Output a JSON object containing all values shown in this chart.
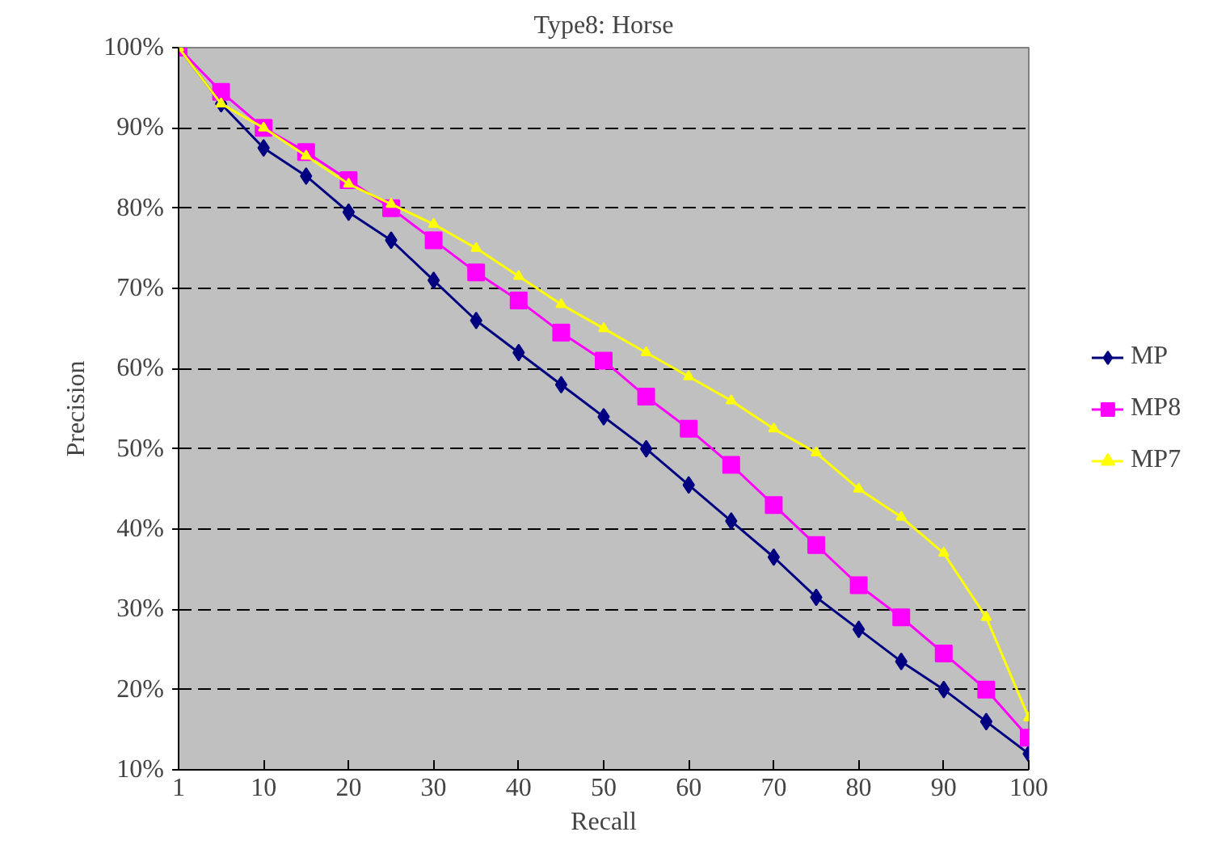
{
  "chart_data": {
    "type": "line",
    "title": "Type8: Horse",
    "xlabel": "Recall",
    "ylabel": "Precision",
    "categories": [
      "1",
      null,
      "10",
      null,
      "20",
      null,
      "30",
      null,
      "40",
      null,
      "50",
      null,
      "60",
      null,
      "70",
      null,
      "80",
      null,
      "90",
      null,
      "100"
    ],
    "ylim": [
      10,
      100
    ],
    "yticks": [
      {
        "value": 10,
        "label": "10%"
      },
      {
        "value": 20,
        "label": "20%"
      },
      {
        "value": 30,
        "label": "30%"
      },
      {
        "value": 40,
        "label": "40%"
      },
      {
        "value": 50,
        "label": "50%"
      },
      {
        "value": 60,
        "label": "60%"
      },
      {
        "value": 70,
        "label": "70%"
      },
      {
        "value": 80,
        "label": "80%"
      },
      {
        "value": 90,
        "label": "90%"
      },
      {
        "value": 100,
        "label": "100%"
      }
    ],
    "grid": "y",
    "legend": "right",
    "series": [
      {
        "name": "MP",
        "color": "#000080",
        "marker": "diamond",
        "values": [
          100,
          93,
          87.5,
          84,
          79.5,
          76,
          71,
          66,
          62,
          58,
          54,
          50,
          45.5,
          41,
          36.5,
          31.5,
          27.5,
          23.5,
          20,
          16,
          12
        ]
      },
      {
        "name": "MP8",
        "color": "#ff00ff",
        "marker": "square",
        "values": [
          100,
          94.5,
          90,
          87,
          83.5,
          80,
          76,
          72,
          68.5,
          64.5,
          61,
          56.5,
          52.5,
          48,
          43,
          38,
          33,
          29,
          24.5,
          20,
          14
        ]
      },
      {
        "name": "MP7",
        "color": "#ffff00",
        "marker": "triangle",
        "values": [
          100,
          93,
          90,
          86.5,
          83,
          80.5,
          78,
          75,
          71.5,
          68,
          65,
          62,
          59,
          56,
          52.5,
          49.5,
          45,
          41.5,
          37,
          29,
          16.5
        ]
      }
    ]
  }
}
